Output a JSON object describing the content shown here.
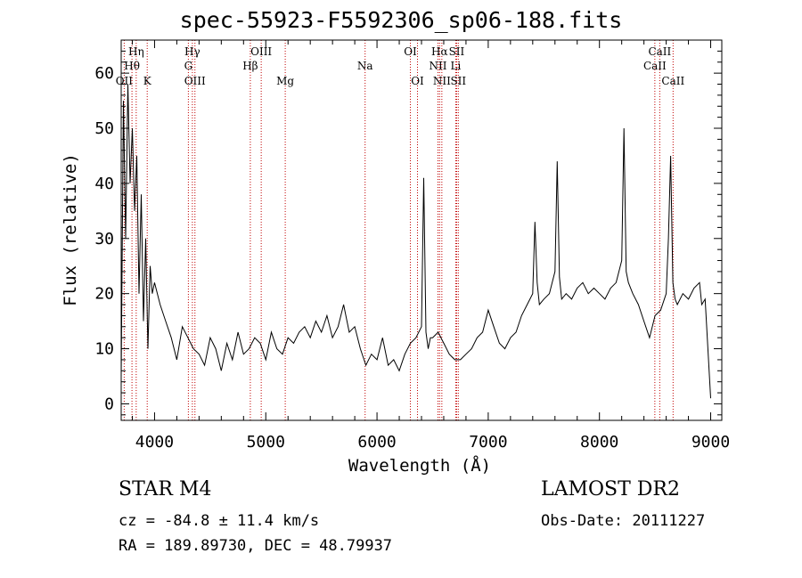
{
  "header": {
    "title": "spec-55923-F5592306_sp06-188.fits"
  },
  "footer": {
    "class_label": "STAR    M4",
    "survey": "LAMOST DR2",
    "cz": "cz = -84.8 ± 11.4 km/s",
    "obs_date": "Obs-Date: 20111227",
    "radec": "RA = 189.89730, DEC =  48.79937"
  },
  "chart_data": {
    "type": "line",
    "title": "spec-55923-F5592306_sp06-188.fits",
    "xlabel": "Wavelength (Å)",
    "ylabel": "Flux (relative)",
    "xlim": [
      3700,
      9100
    ],
    "ylim": [
      -3,
      66
    ],
    "xticks": [
      4000,
      5000,
      6000,
      7000,
      8000,
      9000
    ],
    "yticks": [
      0,
      10,
      20,
      30,
      40,
      50,
      60
    ],
    "grid": false,
    "series": [
      {
        "x": [
          3700,
          3720,
          3740,
          3760,
          3780,
          3800,
          3820,
          3840,
          3860,
          3880,
          3900,
          3920,
          3940,
          3960,
          3980,
          4000,
          4050,
          4100,
          4150,
          4200,
          4250,
          4300,
          4350,
          4400,
          4450,
          4500,
          4550,
          4600,
          4650,
          4700,
          4750,
          4800,
          4850,
          4900,
          4950,
          5000,
          5050,
          5100,
          5150,
          5200,
          5250,
          5300,
          5350,
          5400,
          5450,
          5500,
          5550,
          5600,
          5650,
          5700,
          5750,
          5800,
          5850,
          5900,
          5950,
          6000,
          6050,
          6100,
          6150,
          6200,
          6250,
          6300,
          6350,
          6400,
          6420,
          6440,
          6460,
          6480,
          6500,
          6550,
          6600,
          6650,
          6700,
          6750,
          6800,
          6850,
          6900,
          6950,
          7000,
          7050,
          7100,
          7150,
          7200,
          7250,
          7300,
          7350,
          7400,
          7420,
          7440,
          7460,
          7500,
          7550,
          7600,
          7620,
          7640,
          7660,
          7700,
          7750,
          7800,
          7850,
          7900,
          7950,
          8000,
          8050,
          8100,
          8150,
          8200,
          8220,
          8240,
          8260,
          8300,
          8350,
          8400,
          8450,
          8500,
          8550,
          8600,
          8620,
          8640,
          8660,
          8680,
          8700,
          8750,
          8800,
          8850,
          8900,
          8920,
          8950,
          9000
        ],
        "y": [
          5,
          55,
          30,
          58,
          40,
          50,
          35,
          45,
          20,
          38,
          15,
          30,
          10,
          25,
          20,
          22,
          18,
          15,
          12,
          8,
          14,
          12,
          10,
          9,
          7,
          12,
          10,
          6,
          11,
          8,
          13,
          9,
          10,
          12,
          11,
          8,
          13,
          10,
          9,
          12,
          11,
          13,
          14,
          12,
          15,
          13,
          16,
          12,
          14,
          18,
          13,
          14,
          10,
          7,
          9,
          8,
          12,
          7,
          8,
          6,
          9,
          11,
          12,
          14,
          41,
          13,
          10,
          12,
          12,
          13,
          11,
          9,
          8,
          8,
          9,
          10,
          12,
          13,
          17,
          14,
          11,
          10,
          12,
          13,
          16,
          18,
          20,
          33,
          22,
          18,
          19,
          20,
          24,
          44,
          23,
          19,
          20,
          19,
          21,
          22,
          20,
          21,
          20,
          19,
          21,
          22,
          26,
          50,
          24,
          22,
          20,
          18,
          15,
          12,
          16,
          17,
          20,
          30,
          45,
          22,
          19,
          18,
          20,
          19,
          21,
          22,
          18,
          19,
          1
        ]
      }
    ],
    "annotations": [
      {
        "label": "Hη",
        "x": 3835,
        "row": 1
      },
      {
        "label": "Hθ",
        "x": 3797,
        "row": 2
      },
      {
        "label": "OII",
        "x": 3727,
        "row": 3
      },
      {
        "label": "K",
        "x": 3934,
        "row": 3
      },
      {
        "label": "Hγ",
        "x": 4340,
        "row": 1
      },
      {
        "label": "G",
        "x": 4304,
        "row": 2
      },
      {
        "label": "OIII",
        "x": 4363,
        "row": 3
      },
      {
        "label": "OIII",
        "x": 4959,
        "row": 1
      },
      {
        "label": "Hβ",
        "x": 4861,
        "row": 2
      },
      {
        "label": "Mg",
        "x": 5175,
        "row": 3
      },
      {
        "label": "Na",
        "x": 5893,
        "row": 2
      },
      {
        "label": "OI",
        "x": 6300,
        "row": 1
      },
      {
        "label": "OI",
        "x": 6364,
        "row": 3
      },
      {
        "label": "Hα",
        "x": 6563,
        "row": 1
      },
      {
        "label": "SII",
        "x": 6716,
        "row": 1
      },
      {
        "label": "NII",
        "x": 6548,
        "row": 2
      },
      {
        "label": "Li",
        "x": 6708,
        "row": 2
      },
      {
        "label": "NII",
        "x": 6583,
        "row": 3
      },
      {
        "label": "SII",
        "x": 6731,
        "row": 3
      },
      {
        "label": "CaII",
        "x": 8542,
        "row": 1
      },
      {
        "label": "CaII",
        "x": 8498,
        "row": 2
      },
      {
        "label": "CaII",
        "x": 8662,
        "row": 3
      }
    ],
    "marker_lines": [
      3727,
      3797,
      3835,
      3934,
      4304,
      4340,
      4363,
      4861,
      4959,
      5175,
      5893,
      6300,
      6364,
      6548,
      6563,
      6583,
      6708,
      6716,
      6731,
      8498,
      8542,
      8662
    ],
    "colors": {
      "line": "#000000",
      "marker": "#c00000"
    }
  }
}
